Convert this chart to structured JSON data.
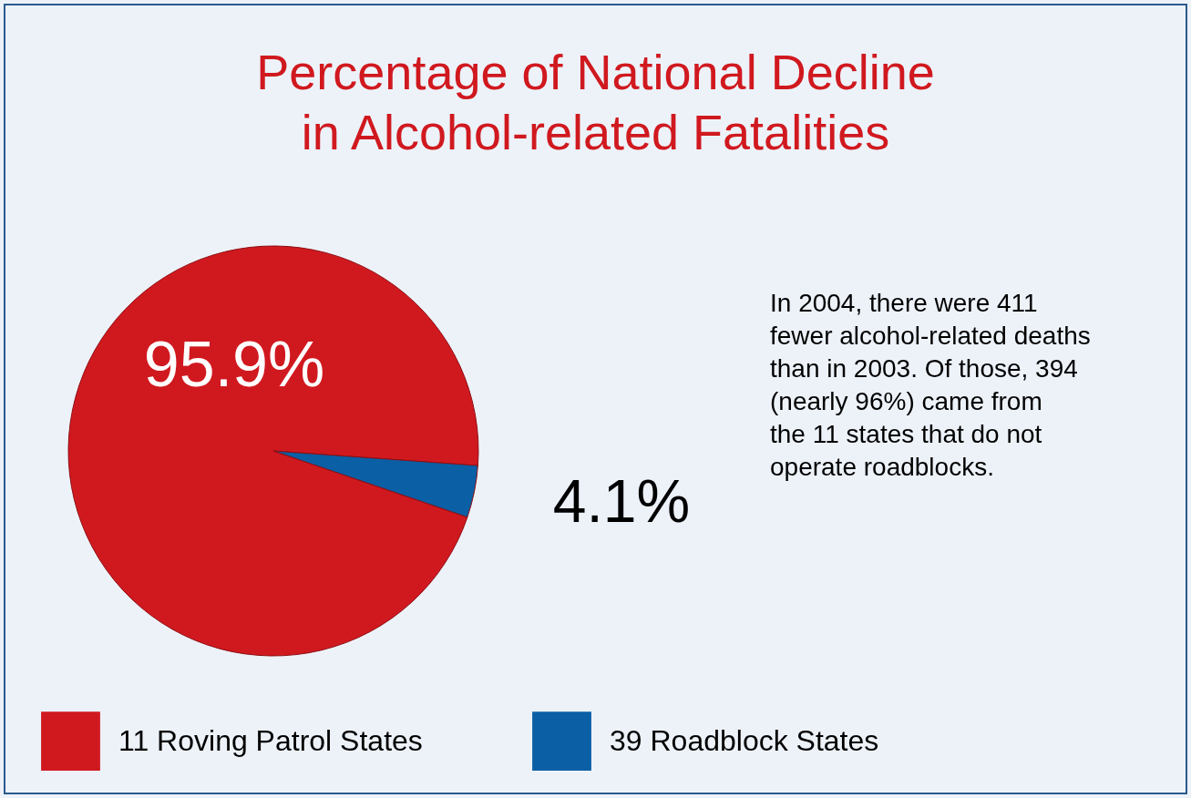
{
  "chart_data": {
    "type": "pie",
    "title": "Percentage of National Decline\nin Alcohol-related Fatalities",
    "categories": [
      "11 Roving Patrol States",
      "39 Roadblock States"
    ],
    "values": [
      95.9,
      4.1
    ],
    "colors": [
      "#d0191f",
      "#0a5fa5"
    ],
    "value_labels": [
      "95.9%",
      "4.1%"
    ],
    "legend": "bottom",
    "annotations": [
      "In 2004, there were 411\nfewer alcohol-related deaths\nthan in 2003. Of those, 394\n(nearly 96%) came from\nthe 11 states that do not\noperate roadblocks."
    ]
  }
}
